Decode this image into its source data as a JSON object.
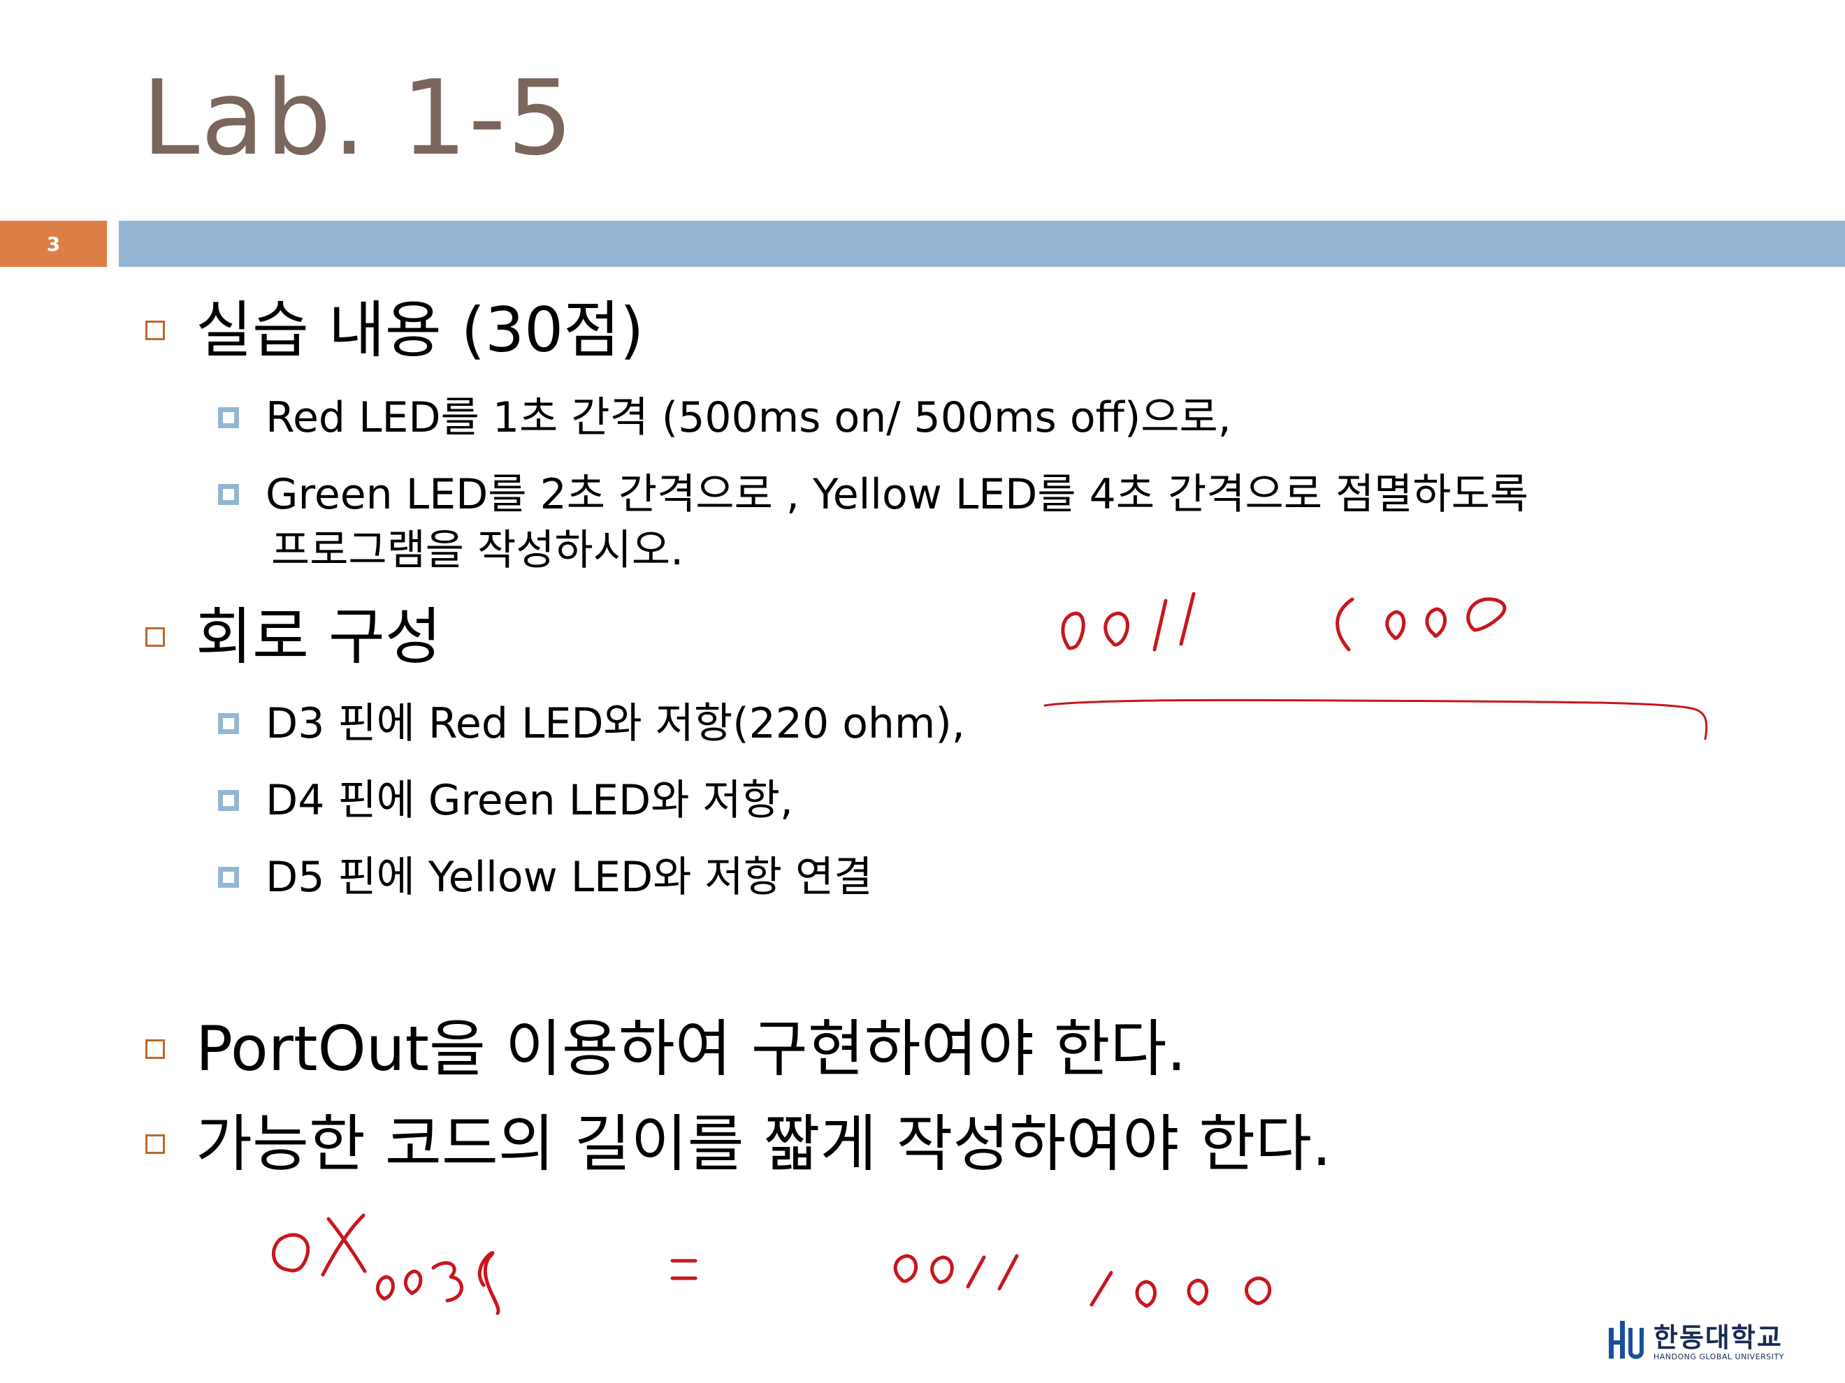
{
  "slide": {
    "title": "Lab. 1-5",
    "number": "3"
  },
  "content": {
    "b1": "실습 내용 (30점)",
    "b1_sub1": "Red LED를 1초 간격 (500ms on/ 500ms off)으로,",
    "b1_sub2_line1": "Green LED를 2초 간격으로 , Yellow LED를 4초 간격으로 점멸하도록",
    "b1_sub2_line2": "프로그램을 작성하시오.",
    "b2": " 회로 구성",
    "b2_sub1": "D3 핀에 Red LED와 저항(220 ohm),",
    "b2_sub2": "D4 핀에 Green LED와 저항,",
    "b2_sub3": "D5 핀에 Yellow LED와 저항 연결",
    "b3": "PortOut을 이용하여 구현하여야 한다.",
    "b4": "가능한 코드의 길이를 짧게 작성하여야 한다."
  },
  "logo": {
    "korean": "한동대학교",
    "english": "HANDONG GLOBAL UNIVERSITY"
  },
  "colors": {
    "title": "#7a665c",
    "accent_orange": "#dd7e47",
    "bar_blue": "#94b6d3",
    "ink_red": "#c8161d"
  }
}
